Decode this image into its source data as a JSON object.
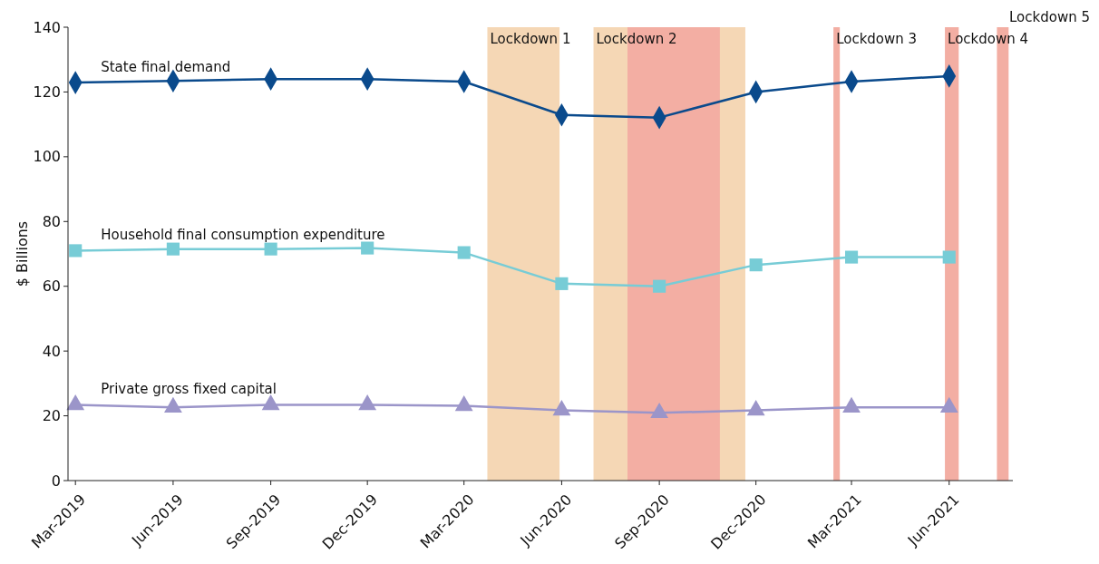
{
  "chart_data": {
    "type": "line",
    "ylabel": "$ Billions",
    "x": [
      "2019-03",
      "2019-06",
      "2019-09",
      "2019-12",
      "2020-03",
      "2020-06",
      "2020-09",
      "2020-12",
      "2021-03",
      "2021-06"
    ],
    "xlim": [
      "2019-02-22",
      "2021-07-31"
    ],
    "xticks": [
      {
        "value": "2019-03",
        "label": "Mar-2019"
      },
      {
        "value": "2019-06",
        "label": "Jun-2019"
      },
      {
        "value": "2019-09",
        "label": "Sep-2019"
      },
      {
        "value": "2019-12",
        "label": "Dec-2019"
      },
      {
        "value": "2020-03",
        "label": "Mar-2020"
      },
      {
        "value": "2020-06",
        "label": "Jun-2020"
      },
      {
        "value": "2020-09",
        "label": "Sep-2020"
      },
      {
        "value": "2020-12",
        "label": "Dec-2020"
      },
      {
        "value": "2021-03",
        "label": "Mar-2021"
      },
      {
        "value": "2021-06",
        "label": "Jun-2021"
      }
    ],
    "ylim": [
      0,
      140
    ],
    "yticks": [
      0,
      20,
      40,
      60,
      80,
      100,
      120,
      140
    ],
    "grid": false,
    "line_style": "solid",
    "series": [
      {
        "name": "State final demand",
        "color": "#0a4a8c",
        "marker": "diamond",
        "values": [
          122.9,
          123.4,
          124.0,
          124.0,
          123.2,
          112.9,
          112.1,
          120.0,
          123.2,
          124.9
        ]
      },
      {
        "name": "Household final consumption expenditure",
        "color": "#77ccd6",
        "marker": "square",
        "values": [
          71.0,
          71.5,
          71.5,
          71.8,
          70.4,
          60.8,
          60.0,
          66.6,
          69.0,
          69.0
        ]
      },
      {
        "name": "Private gross fixed capital",
        "color": "#9b95c9",
        "marker": "triangle",
        "values": [
          23.4,
          22.6,
          23.4,
          23.4,
          23.1,
          21.7,
          20.9,
          21.7,
          22.6,
          22.6
        ]
      }
    ],
    "bands": [
      {
        "axis": "x",
        "from": "2020-03-23",
        "to": "2020-05-30",
        "label": "Lockdown 1",
        "color": "#f5d7b5"
      },
      {
        "axis": "x",
        "from": "2020-07-01",
        "to": "2020-11-21",
        "label": "Lockdown 2",
        "color": "#f5d7b5"
      },
      {
        "axis": "x",
        "from": "2020-08-02",
        "to": "2020-10-28",
        "color": "#f3aea3"
      },
      {
        "axis": "x",
        "from": "2021-02-12",
        "to": "2021-02-18",
        "label": "Lockdown 3",
        "color": "#f3aea3"
      },
      {
        "axis": "x",
        "from": "2021-05-28",
        "to": "2021-06-10",
        "label": "Lockdown 4",
        "color": "#f3aea3"
      },
      {
        "axis": "x",
        "from": "2021-07-16",
        "to": "2021-07-27",
        "label": "Lockdown 5",
        "color": "#f3aea3"
      }
    ]
  }
}
